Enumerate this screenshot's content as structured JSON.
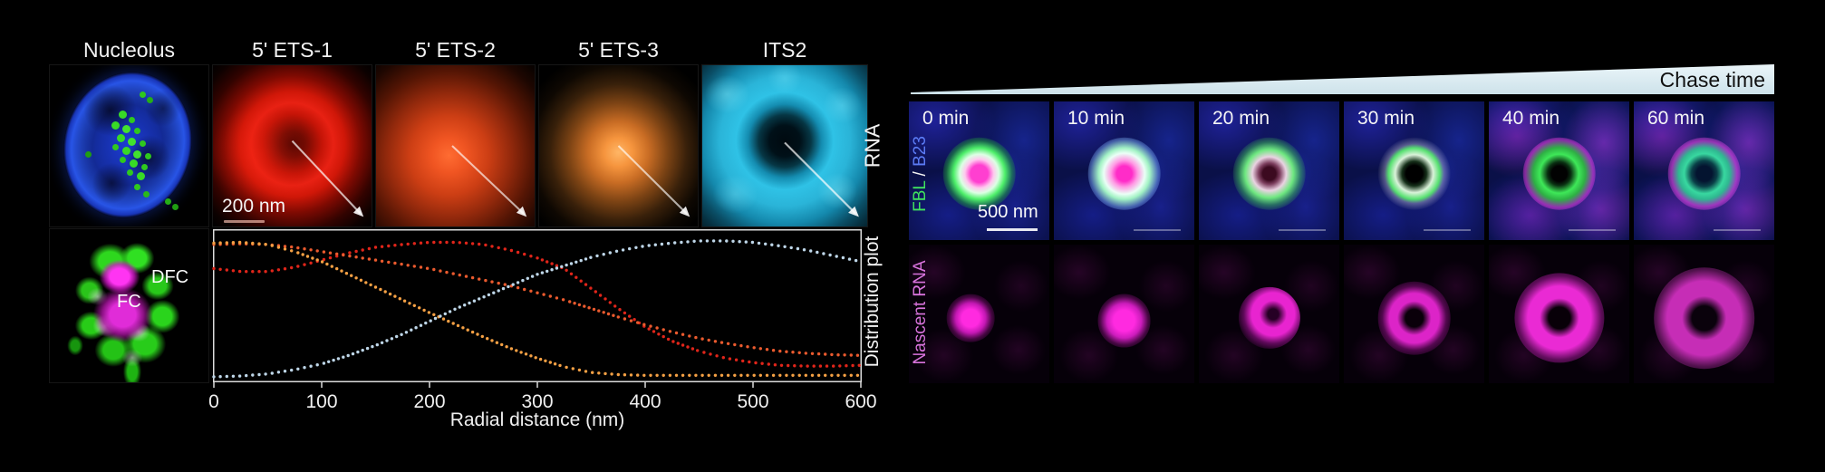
{
  "figure": {
    "left": {
      "panel_labels": [
        "Nucleolus",
        "5' ETS-1",
        "5' ETS-2",
        "5' ETS-3",
        "ITS2"
      ],
      "row_label": "RNA",
      "scale_bar": "200 nm",
      "inset_labels": {
        "dfc": "DFC",
        "fc": "FC"
      },
      "plot_label": "Distribution plot"
    },
    "right": {
      "chase_label": "Chase time",
      "timepoints": [
        "0 min",
        "10 min",
        "20 min",
        "30 min",
        "40 min",
        "60 min"
      ],
      "row1_label": {
        "fbl": "FBL",
        "sep": " / ",
        "b23": "B23"
      },
      "row1_label_colors": {
        "fbl": "#3fe25e",
        "sep": "#f2f2f2",
        "b23": "#5b7bf5"
      },
      "row2_label": "Nascent RNA",
      "row2_label_color": "#d873dc",
      "scale_bar": "500 nm"
    }
  },
  "chart_data": {
    "type": "line",
    "style": "dotted",
    "title": "Distribution plot",
    "xlabel": "Radial distance (nm)",
    "ylabel": "Distribution plot",
    "xlim": [
      0,
      600
    ],
    "ylim": [
      0,
      1
    ],
    "x_ticks": [
      0,
      100,
      200,
      300,
      400,
      500,
      600
    ],
    "grid": false,
    "legend": "none (series colored to match RNA probe panels)",
    "x": [
      0,
      25,
      50,
      75,
      100,
      125,
      150,
      175,
      200,
      225,
      250,
      275,
      300,
      325,
      350,
      375,
      400,
      425,
      450,
      475,
      500,
      525,
      550,
      575,
      600
    ],
    "series": [
      {
        "name": "5' ETS-1",
        "color": "#e0251a",
        "values": [
          0.78,
          0.76,
          0.76,
          0.79,
          0.84,
          0.89,
          0.93,
          0.95,
          0.965,
          0.965,
          0.95,
          0.91,
          0.855,
          0.78,
          0.64,
          0.5,
          0.37,
          0.27,
          0.2,
          0.15,
          0.12,
          0.1,
          0.095,
          0.095,
          0.1
        ]
      },
      {
        "name": "5' ETS-2",
        "color": "#ea5a2e",
        "values": [
          0.95,
          0.955,
          0.95,
          0.93,
          0.9,
          0.87,
          0.84,
          0.81,
          0.78,
          0.74,
          0.7,
          0.66,
          0.61,
          0.56,
          0.5,
          0.44,
          0.385,
          0.335,
          0.29,
          0.255,
          0.225,
          0.2,
          0.185,
          0.175,
          0.17
        ]
      },
      {
        "name": "5' ETS-3",
        "color": "#f4a044",
        "values": [
          0.96,
          0.965,
          0.95,
          0.9,
          0.83,
          0.74,
          0.65,
          0.56,
          0.47,
          0.385,
          0.3,
          0.22,
          0.15,
          0.09,
          0.05,
          0.035,
          0.03,
          0.03,
          0.03,
          0.03,
          0.03,
          0.03,
          0.03,
          0.03,
          0.03
        ]
      },
      {
        "name": "ITS2",
        "color": "#bed6e8",
        "values": [
          0.02,
          0.025,
          0.04,
          0.07,
          0.11,
          0.17,
          0.24,
          0.32,
          0.41,
          0.5,
          0.58,
          0.66,
          0.74,
          0.8,
          0.86,
          0.905,
          0.94,
          0.96,
          0.975,
          0.975,
          0.965,
          0.94,
          0.91,
          0.87,
          0.83
        ]
      }
    ]
  }
}
